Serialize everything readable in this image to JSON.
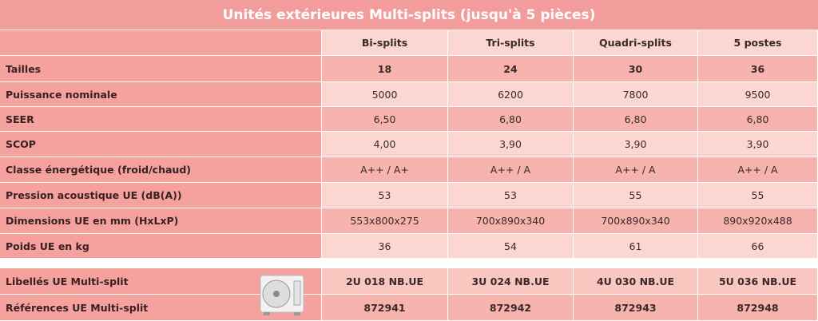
{
  "title": "Unités extérieures Multi-splits (jusqu'à 5 pièces)",
  "table": {
    "columns": [
      "Bi-splits",
      "Tri-splits",
      "Quadri-splits",
      "5 postes"
    ],
    "rows": [
      [
        "Tailles",
        "18",
        "24",
        "30",
        "36"
      ],
      [
        "Puissance nominale",
        "5000",
        "6200",
        "7800",
        "9500"
      ],
      [
        "SEER",
        "6,50",
        "6,80",
        "6,80",
        "6,80"
      ],
      [
        "SCOP",
        "4,00",
        "3,90",
        "3,90",
        "3,90"
      ],
      [
        "Classe énergétique (froid/chaud)",
        "A++ / A+",
        "A++ / A",
        "A++ / A",
        "A++ / A"
      ],
      [
        "Pression acoustique UE (dB(A))",
        "53",
        "53",
        "55",
        "55"
      ],
      [
        "Dimensions UE en mm (HxLxP)",
        "553x800x275",
        "700x890x340",
        "700x890x340",
        "890x920x488"
      ],
      [
        "Poids UE en kg",
        "36",
        "54",
        "61",
        "66"
      ]
    ],
    "bottom_rows": [
      [
        "Libellés UE Multi-split",
        "2U 018 NB.UE",
        "3U 024 NB.UE",
        "4U 030 NB.UE",
        "5U 036 NB.UE"
      ],
      [
        "Références UE Multi-split",
        "872941",
        "872942",
        "872943",
        "872948"
      ]
    ]
  }
}
